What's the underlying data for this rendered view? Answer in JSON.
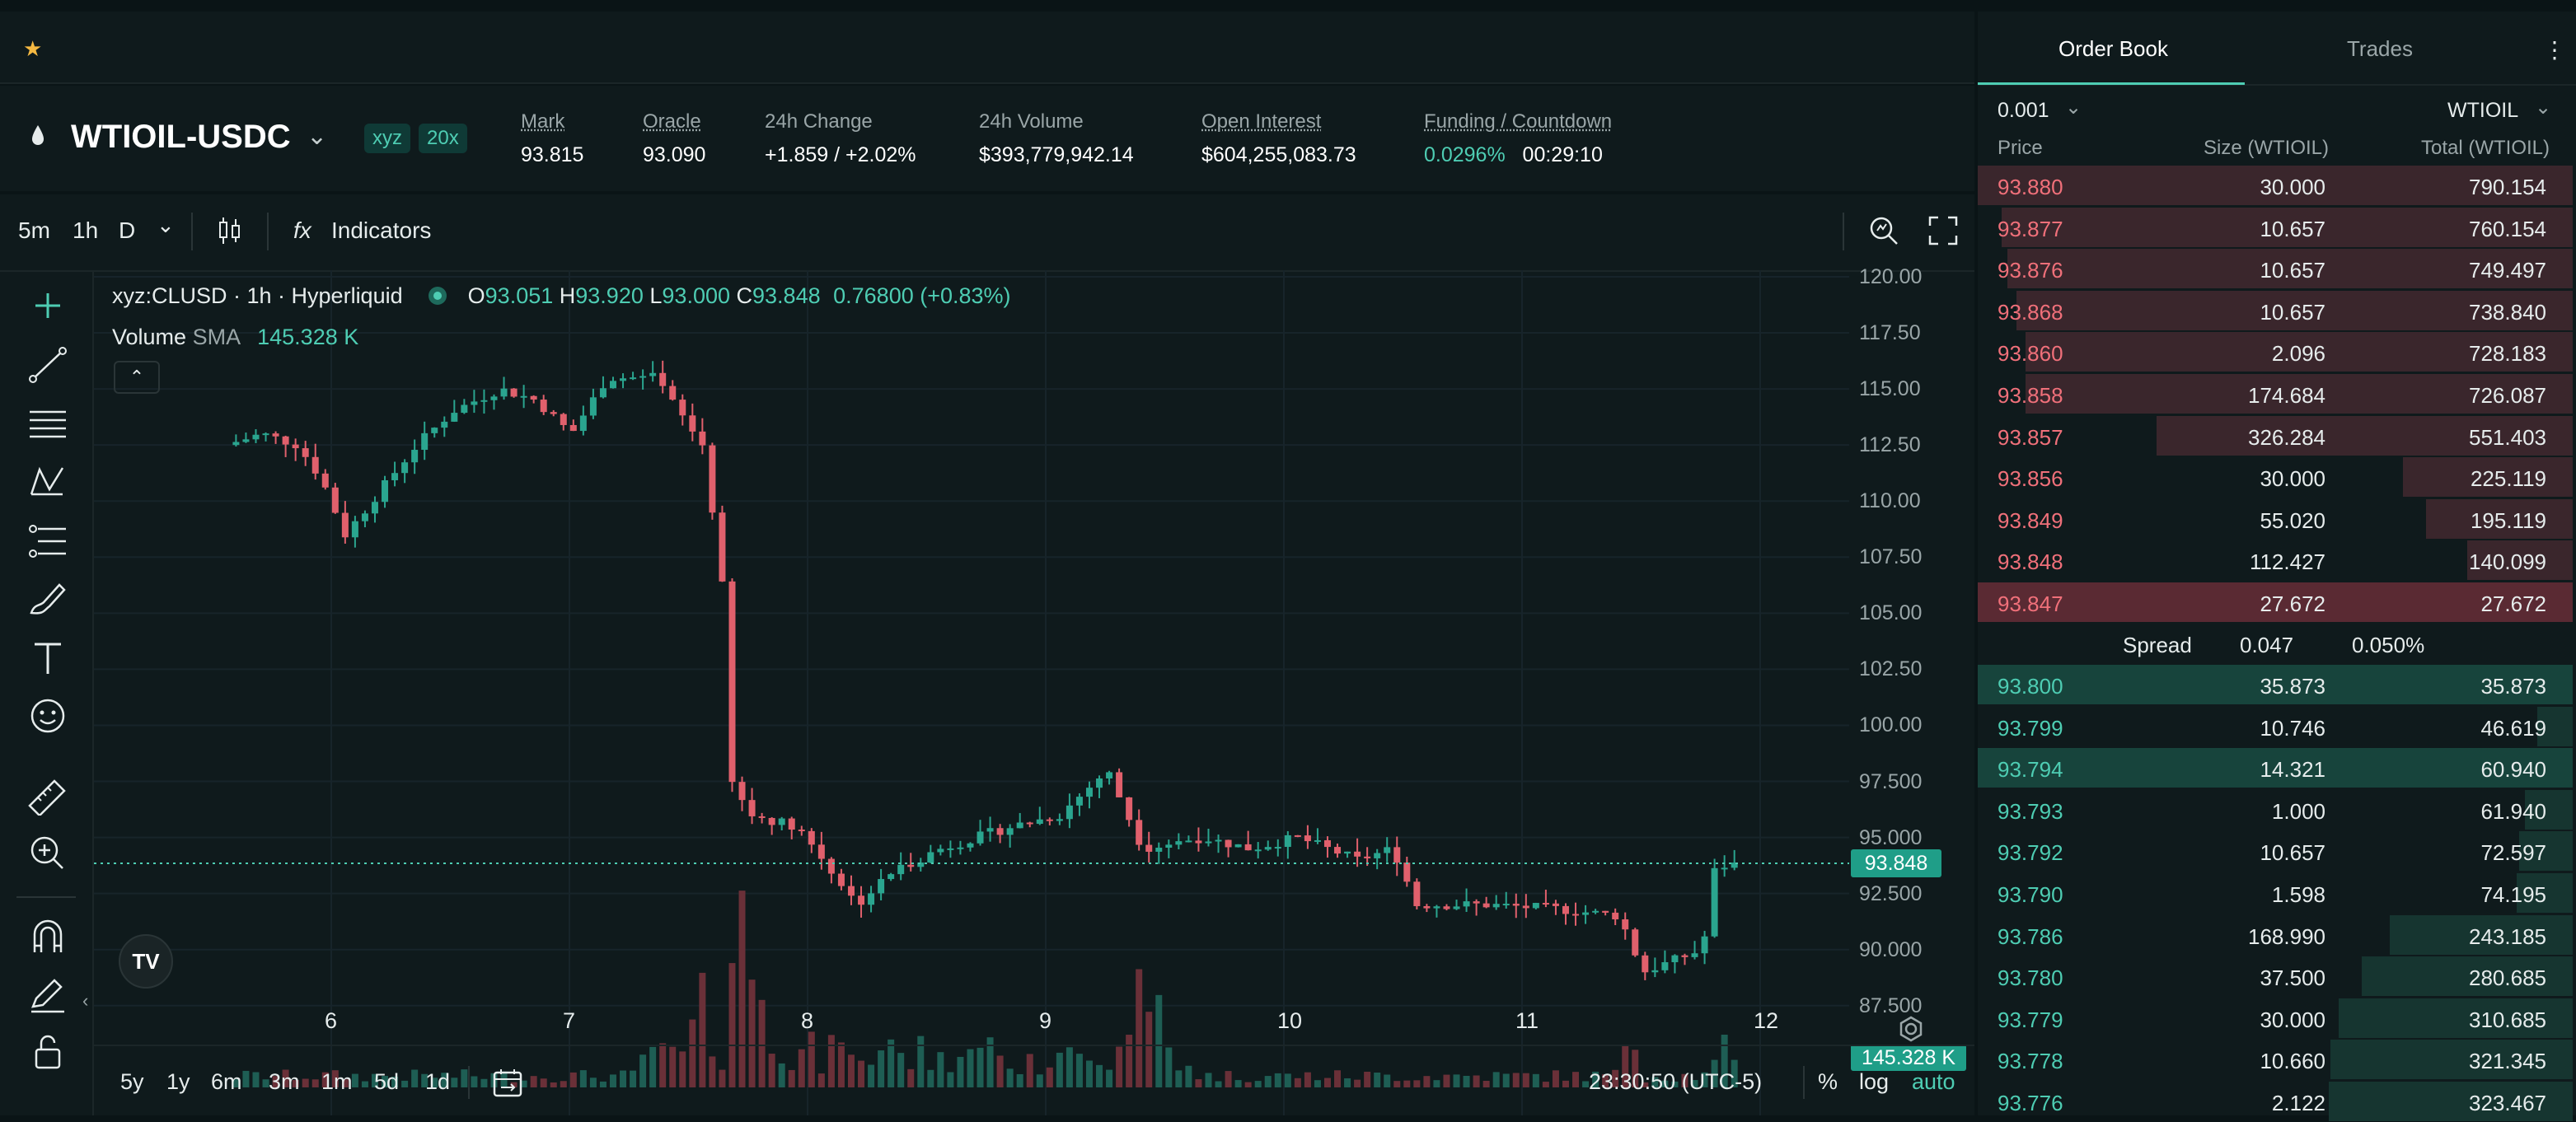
{
  "top_bar": {
    "favorite_icon": "star-icon"
  },
  "ticker": {
    "symbol": "WTIOIL-USDC",
    "badge_dex": "xyz",
    "badge_leverage": "20x",
    "stats": [
      {
        "label": "Mark",
        "value": "93.815",
        "underline": true
      },
      {
        "label": "Oracle",
        "value": "93.090",
        "underline": true
      },
      {
        "label": "24h Change",
        "value": "+1.859 / +2.02%",
        "underline": false,
        "color": "#4ecdb3"
      },
      {
        "label": "24h Volume",
        "value": "$393,779,942.14",
        "underline": false
      },
      {
        "label": "Open Interest",
        "value": "$604,255,083.73",
        "underline": true
      },
      {
        "label": "Funding / Countdown",
        "value": "0.0296%",
        "value2": "00:29:10",
        "underline": true
      }
    ]
  },
  "chart_toolbar": {
    "intervals": [
      "5m",
      "1h",
      "D"
    ],
    "active_interval": "1h",
    "indicators_label": "Indicators",
    "fx_label": "fx"
  },
  "legend": {
    "title": "xyz:CLUSD · 1h · Hyperliquid",
    "o_label": "O",
    "o": "93.051",
    "h_label": "H",
    "h": "93.920",
    "l_label": "L",
    "l": "93.000",
    "c_label": "C",
    "c": "93.848",
    "change": "0.76800 (+0.83%)",
    "volume_label": "Volume",
    "sma_label": "SMA",
    "volume_value": "145.328 K"
  },
  "chart_data": {
    "type": "candlestick",
    "y_ticks": [
      "120.00",
      "117.50",
      "115.00",
      "112.50",
      "110.00",
      "107.50",
      "105.00",
      "102.50",
      "100.00",
      "97.500",
      "95.000",
      "92.500",
      "90.000",
      "87.500"
    ],
    "x_ticks": [
      "6",
      "7",
      "8",
      "9",
      "10",
      "11",
      "12"
    ],
    "ylim": [
      86.5,
      120.0
    ],
    "last_price_label": "93.848",
    "volume_label": "145.328 K",
    "anchors": [
      [
        5.6,
        112.5
      ],
      [
        5.75,
        113.0
      ],
      [
        5.9,
        112.5
      ],
      [
        6.0,
        111.0
      ],
      [
        6.1,
        108.5
      ],
      [
        6.25,
        110.5
      ],
      [
        6.4,
        112.5
      ],
      [
        6.55,
        114.0
      ],
      [
        6.75,
        115.0
      ],
      [
        6.9,
        114.5
      ],
      [
        7.05,
        113.0
      ],
      [
        7.2,
        115.5
      ],
      [
        7.4,
        115.5
      ],
      [
        7.6,
        112.5
      ],
      [
        7.68,
        107.0
      ],
      [
        7.72,
        97.5
      ],
      [
        7.8,
        96.0
      ],
      [
        8.0,
        95.5
      ],
      [
        8.25,
        92.0
      ],
      [
        8.4,
        93.5
      ],
      [
        8.6,
        94.5
      ],
      [
        8.9,
        95.5
      ],
      [
        9.1,
        96.0
      ],
      [
        9.3,
        98.0
      ],
      [
        9.45,
        94.5
      ],
      [
        9.7,
        95.0
      ],
      [
        9.9,
        94.5
      ],
      [
        10.1,
        95.0
      ],
      [
        10.35,
        94.0
      ],
      [
        10.5,
        94.5
      ],
      [
        10.6,
        92.0
      ],
      [
        10.9,
        92.0
      ],
      [
        11.2,
        91.8
      ],
      [
        11.45,
        91.5
      ],
      [
        11.55,
        89.0
      ],
      [
        11.8,
        90.0
      ],
      [
        11.85,
        93.5
      ],
      [
        11.9,
        93.8
      ]
    ],
    "volume_spikes": [
      [
        7.55,
        0.45
      ],
      [
        7.72,
        1.0
      ],
      [
        7.78,
        0.6
      ],
      [
        9.4,
        0.45
      ],
      [
        9.45,
        0.38
      ],
      [
        11.45,
        0.2
      ],
      [
        11.85,
        0.2
      ]
    ]
  },
  "range_bar": {
    "ranges": [
      "5y",
      "1y",
      "6m",
      "3m",
      "1m",
      "5d",
      "1d"
    ],
    "time": "23:30:50 (UTC-5)",
    "pct": "%",
    "log": "log",
    "auto": "auto"
  },
  "order_book": {
    "tab_book": "Order Book",
    "tab_trades": "Trades",
    "tick_size": "0.001",
    "unit": "WTIOIL",
    "col_price": "Price",
    "col_size": "Size (WTIOIL)",
    "col_total": "Total (WTIOIL)",
    "asks": [
      {
        "price": "93.880",
        "size": "30.000",
        "total": "790.154",
        "depth": 1.0
      },
      {
        "price": "93.877",
        "size": "10.657",
        "total": "760.154",
        "depth": 0.96
      },
      {
        "price": "93.876",
        "size": "10.657",
        "total": "749.497",
        "depth": 0.95
      },
      {
        "price": "93.868",
        "size": "10.657",
        "total": "738.840",
        "depth": 0.935
      },
      {
        "price": "93.860",
        "size": "2.096",
        "total": "728.183",
        "depth": 0.92
      },
      {
        "price": "93.858",
        "size": "174.684",
        "total": "726.087",
        "depth": 0.92
      },
      {
        "price": "93.857",
        "size": "326.284",
        "total": "551.403",
        "depth": 0.7
      },
      {
        "price": "93.856",
        "size": "30.000",
        "total": "225.119",
        "depth": 0.285
      },
      {
        "price": "93.849",
        "size": "55.020",
        "total": "195.119",
        "depth": 0.247
      },
      {
        "price": "93.848",
        "size": "112.427",
        "total": "140.099",
        "depth": 0.177
      },
      {
        "price": "93.847",
        "size": "27.672",
        "total": "27.672",
        "depth": 1.0
      }
    ],
    "spread_label": "Spread",
    "spread_value": "0.047",
    "spread_pct": "0.050%",
    "bids": [
      {
        "price": "93.800",
        "size": "35.873",
        "total": "35.873",
        "depth": 1.0
      },
      {
        "price": "93.799",
        "size": "10.746",
        "total": "46.619",
        "depth": 0.06
      },
      {
        "price": "93.794",
        "size": "14.321",
        "total": "60.940",
        "depth": 1.0
      },
      {
        "price": "93.793",
        "size": "1.000",
        "total": "61.940",
        "depth": 0.08
      },
      {
        "price": "93.792",
        "size": "10.657",
        "total": "72.597",
        "depth": 0.09
      },
      {
        "price": "93.790",
        "size": "1.598",
        "total": "74.195",
        "depth": 0.094
      },
      {
        "price": "93.786",
        "size": "168.990",
        "total": "243.185",
        "depth": 0.308
      },
      {
        "price": "93.780",
        "size": "37.500",
        "total": "280.685",
        "depth": 0.355
      },
      {
        "price": "93.779",
        "size": "30.000",
        "total": "310.685",
        "depth": 0.393
      },
      {
        "price": "93.778",
        "size": "10.660",
        "total": "321.345",
        "depth": 0.407
      },
      {
        "price": "93.776",
        "size": "2.122",
        "total": "323.467",
        "depth": 0.41
      }
    ]
  }
}
